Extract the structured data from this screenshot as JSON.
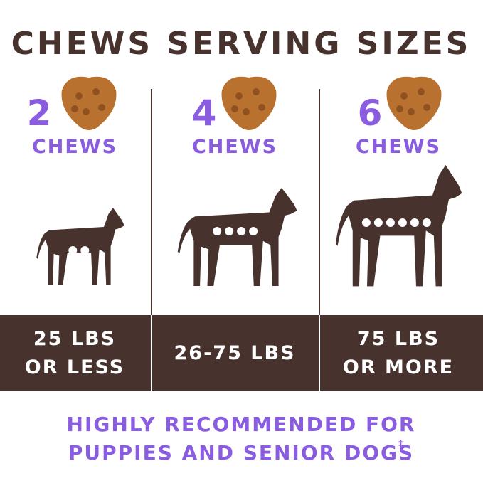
{
  "title": "CHEWS SERVING SIZES",
  "columns": [
    {
      "count": 2,
      "unit": "CHEWS",
      "weight": [
        "25 LBS",
        "OR LESS"
      ]
    },
    {
      "count": 4,
      "unit": "CHEWS",
      "weight": [
        "26-75 LBS"
      ]
    },
    {
      "count": 6,
      "unit": "CHEWS",
      "weight": [
        "75 LBS",
        "OR MORE"
      ]
    }
  ],
  "footer": {
    "lines": [
      "HIGHLY RECOMMENDED FOR",
      "PUPPIES AND SENIOR DOGS"
    ],
    "mark": "‡"
  }
}
